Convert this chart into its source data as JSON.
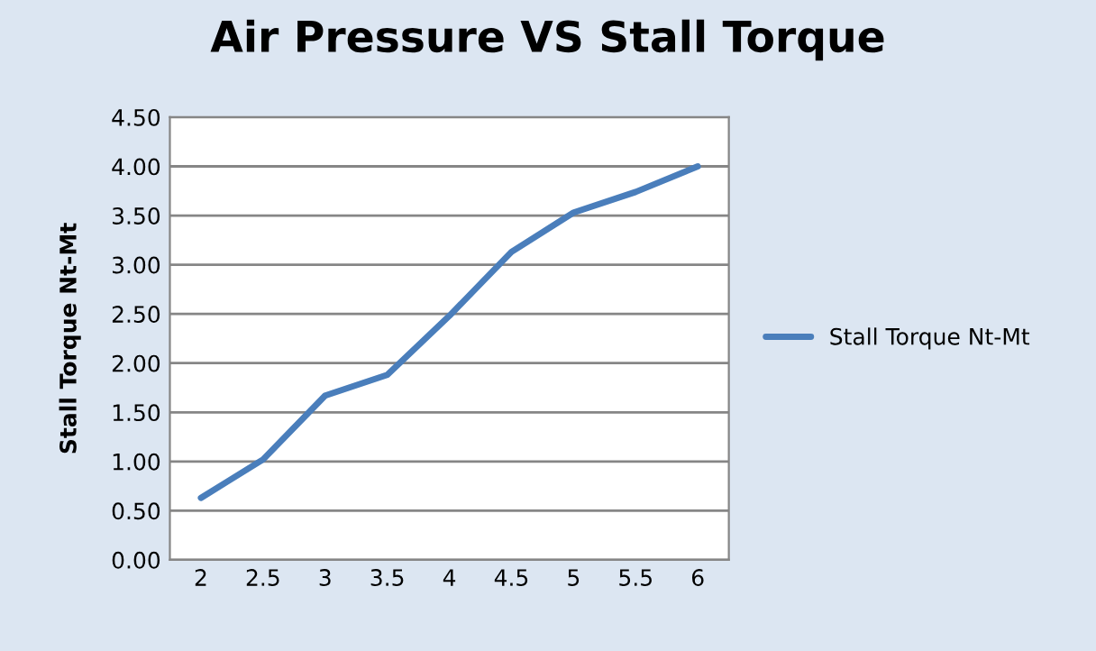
{
  "chart_data": {
    "type": "line",
    "title": "Air Pressure VS Stall Torque",
    "ylabel": "Stall Torque Nt-Mt",
    "categories": [
      "2",
      "2.5",
      "3",
      "3.5",
      "4",
      "4.5",
      "5",
      "5.5",
      "6"
    ],
    "series": [
      {
        "name": "Stall Torque Nt-Mt",
        "color": "#4a7ebb",
        "values": [
          0.63,
          1.02,
          1.67,
          1.88,
          2.48,
          3.13,
          3.53,
          3.74,
          4.0
        ]
      }
    ],
    "ylim": [
      0,
      4.5
    ],
    "yticks": [
      {
        "value": 0,
        "label": "0.00"
      },
      {
        "value": 0.5,
        "label": "0.50"
      },
      {
        "value": 1,
        "label": "1.00"
      },
      {
        "value": 1.5,
        "label": "1.50"
      },
      {
        "value": 2,
        "label": "2.00"
      },
      {
        "value": 2.5,
        "label": "2.50"
      },
      {
        "value": 3,
        "label": "3.00"
      },
      {
        "value": 3.5,
        "label": "3.50"
      },
      {
        "value": 4,
        "label": "4.00"
      },
      {
        "value": 4.5,
        "label": "4.50"
      }
    ],
    "grid": "y",
    "legend": "right",
    "marker": "none",
    "line_style": "solid"
  }
}
